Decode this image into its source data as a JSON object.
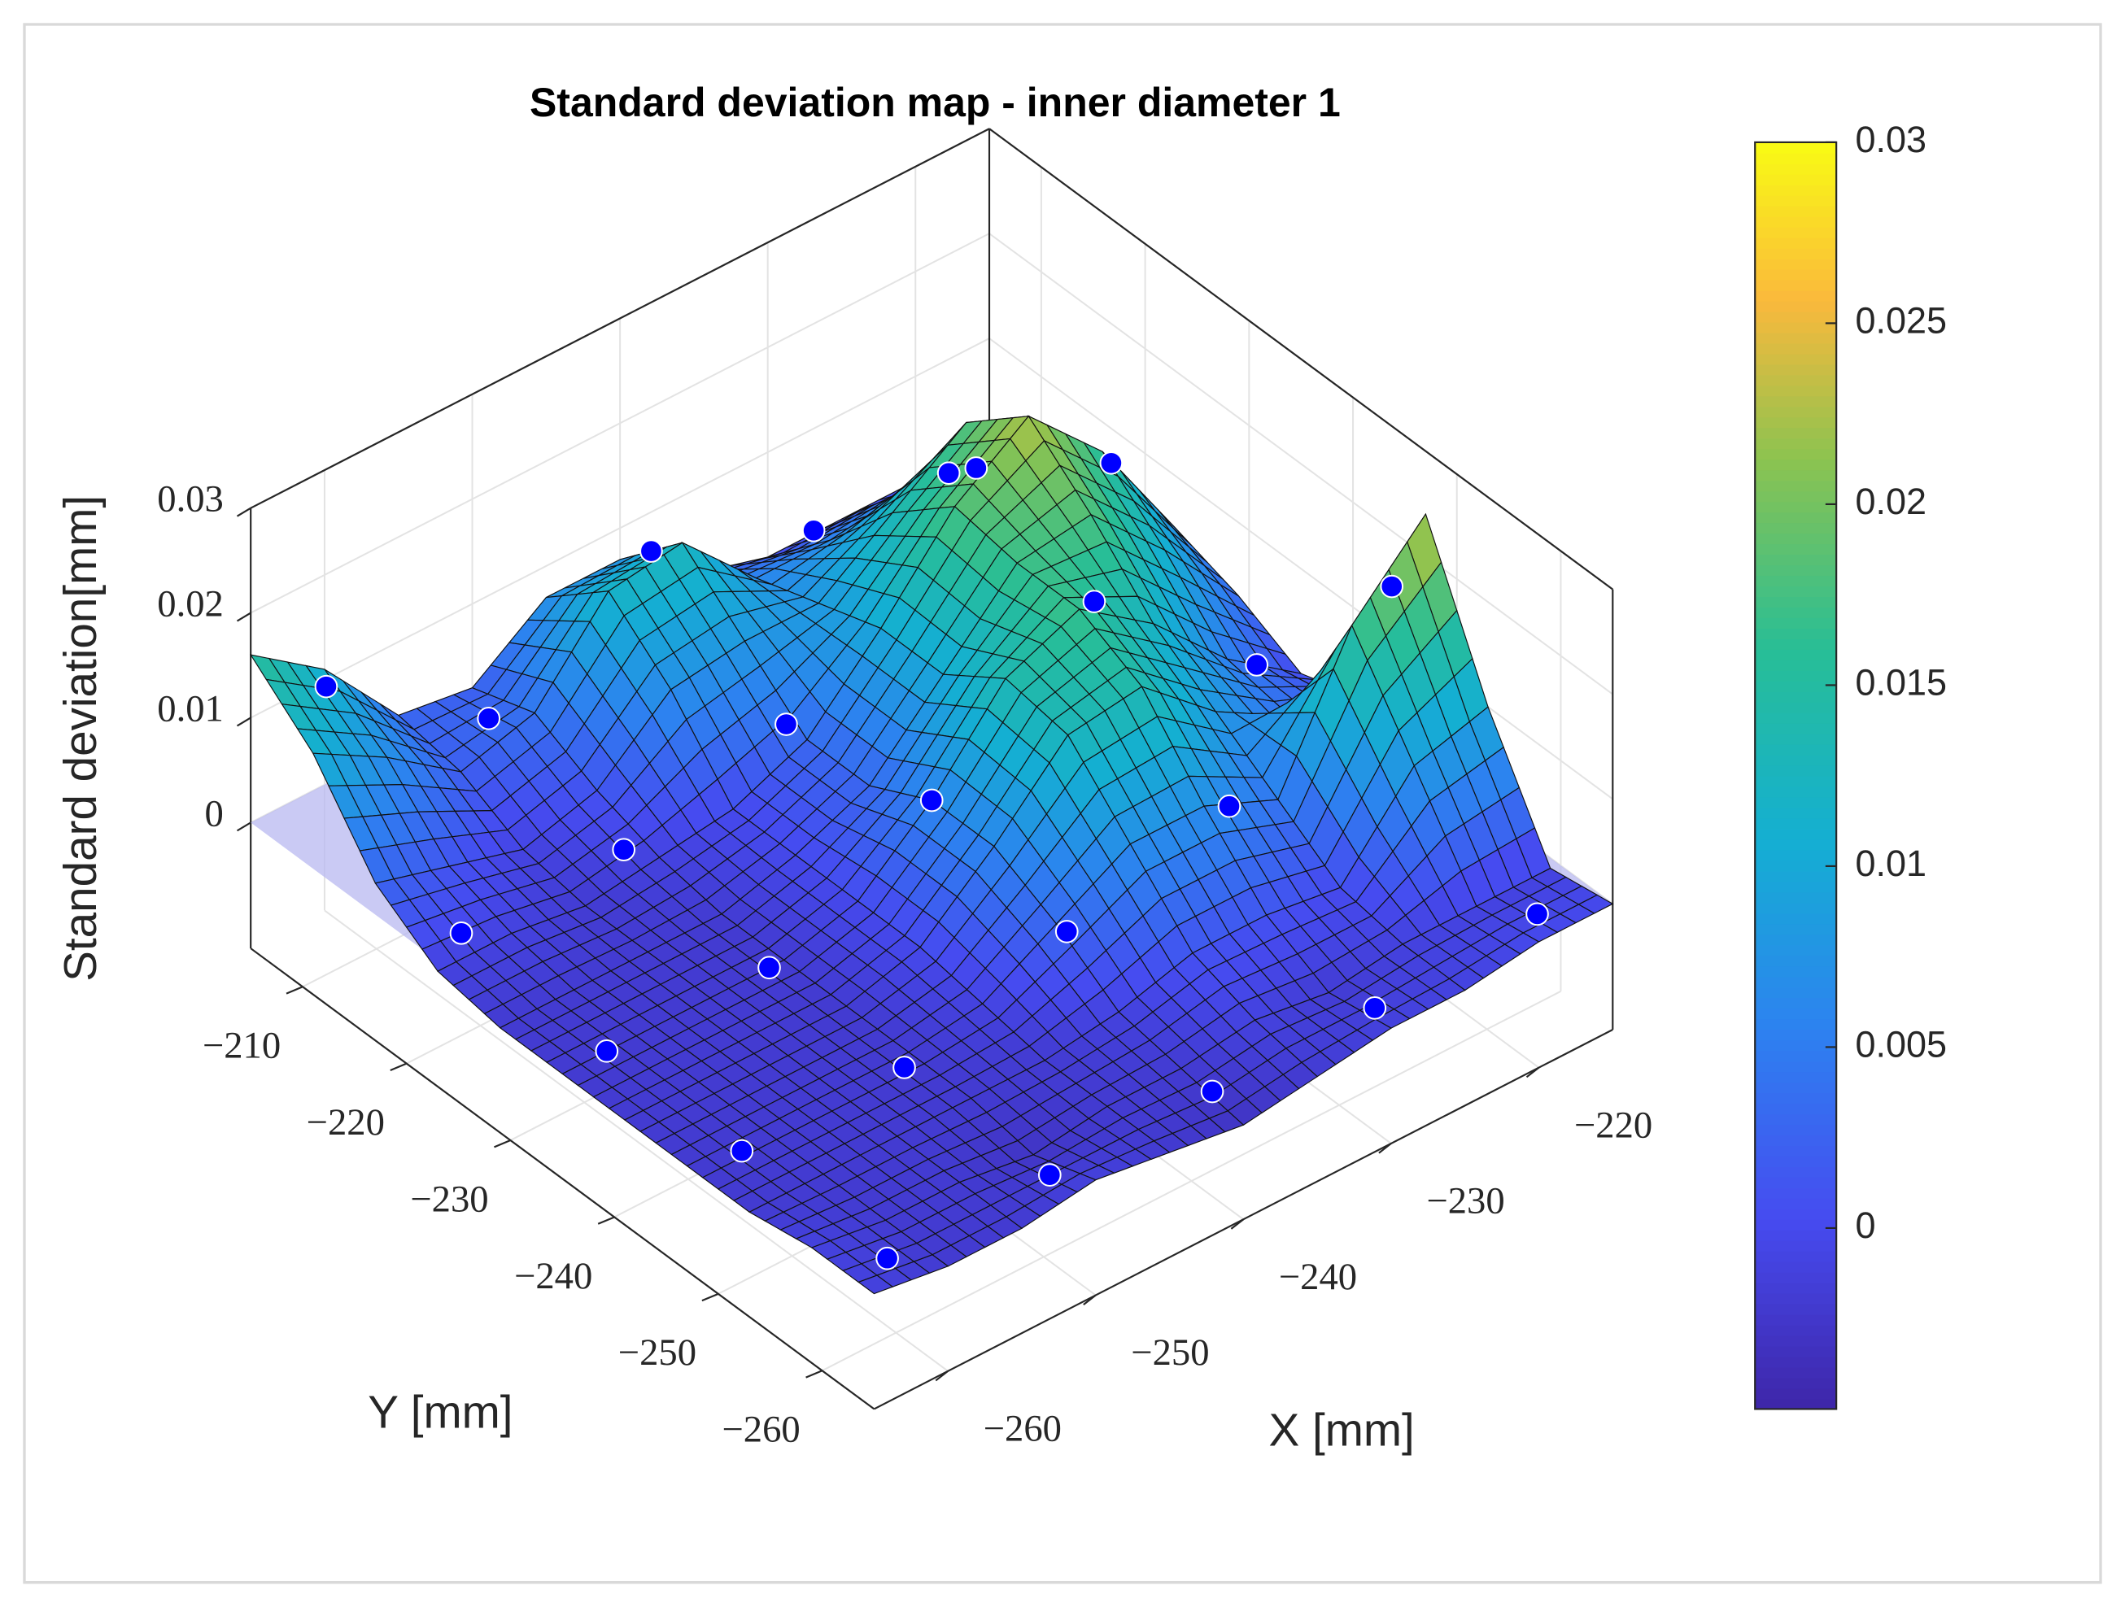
{
  "chart_data": {
    "type": "surface",
    "title": "Standard deviation map - inner diameter 1",
    "xlabel": "X [mm]",
    "ylabel": "Y [mm]",
    "zlabel": "Standard deviation[mm]",
    "x": [
      -265,
      -260,
      -255,
      -250,
      -245,
      -240,
      -235,
      -230,
      -225,
      -220,
      -215
    ],
    "y": [
      -265,
      -259,
      -253,
      -247,
      -241,
      -235,
      -229,
      -223,
      -217,
      -211,
      -205
    ],
    "z": [
      [
        -0.001,
        -0.002,
        -0.002,
        -0.001,
        -0.002,
        -0.003,
        -0.002,
        -0.001,
        -0.001,
        0.0,
        0.0
      ],
      [
        -0.001,
        -0.002,
        -0.002,
        -0.003,
        -0.002,
        -0.002,
        -0.001,
        -0.002,
        -0.001,
        -0.001,
        -0.001
      ],
      [
        -0.002,
        -0.002,
        -0.002,
        -0.002,
        -0.002,
        -0.001,
        0.001,
        0.001,
        0.0,
        0.008,
        0.01
      ],
      [
        -0.002,
        -0.002,
        -0.002,
        -0.002,
        -0.001,
        0.003,
        0.007,
        0.007,
        0.004,
        0.017,
        0.024
      ],
      [
        -0.002,
        -0.002,
        -0.002,
        -0.002,
        0.0,
        0.006,
        0.013,
        0.014,
        0.008,
        0.004,
        0.002
      ],
      [
        -0.002,
        -0.002,
        -0.002,
        -0.002,
        0.0,
        0.006,
        0.014,
        0.017,
        0.012,
        0.005,
        0.0
      ],
      [
        -0.002,
        -0.002,
        -0.002,
        -0.002,
        0.0,
        0.003,
        0.01,
        0.017,
        0.018,
        0.011,
        0.003
      ],
      [
        -0.001,
        -0.001,
        -0.002,
        -0.001,
        0.0,
        0.003,
        0.01,
        0.018,
        0.023,
        0.016,
        0.005
      ],
      [
        0.003,
        0.001,
        -0.001,
        0.001,
        0.007,
        0.008,
        0.008,
        0.013,
        0.018,
        0.013,
        0.004
      ],
      [
        0.011,
        0.007,
        0.002,
        0.004,
        0.012,
        0.013,
        0.006,
        0.006,
        0.007,
        0.005,
        0.001
      ],
      [
        0.016,
        0.011,
        0.003,
        0.002,
        0.007,
        0.007,
        0.002,
        0.0,
        0.0,
        0.0,
        -0.001
      ]
    ],
    "scatter": {
      "color": "#0000ff",
      "x": [
        -262,
        -251,
        -240,
        -229,
        -218,
        -262,
        -251,
        -240,
        -229,
        -218,
        -262,
        -251,
        -240,
        -229,
        -218,
        -262,
        -251,
        -240,
        -229,
        -218,
        -262,
        -251,
        -240,
        -229,
        -218
      ],
      "y": [
        -262,
        -262,
        -262,
        -262,
        -262,
        -248,
        -248,
        -248,
        -248,
        -248,
        -235,
        -235,
        -235,
        -235,
        -235,
        -221,
        -221,
        -221,
        -221,
        -221,
        -208,
        -208,
        -208,
        -208,
        -208
      ],
      "z": [
        -0.002,
        -0.002,
        -0.002,
        -0.002,
        -0.001,
        -0.002,
        -0.002,
        0.003,
        0.007,
        0.02,
        -0.002,
        -0.002,
        0.006,
        0.017,
        0.003,
        -0.001,
        -0.001,
        0.003,
        0.019,
        0.012,
        0.013,
        0.002,
        0.01,
        0.004,
        0.002
      ]
    },
    "xlim": [
      -265,
      -215
    ],
    "ylim": [
      -265,
      -205
    ],
    "zlim": [
      -0.012,
      0.03
    ],
    "xticks": [
      {
        "value": -260,
        "label": "−260"
      },
      {
        "value": -250,
        "label": "−250"
      },
      {
        "value": -240,
        "label": "−240"
      },
      {
        "value": -230,
        "label": "−230"
      },
      {
        "value": -220,
        "label": "−220"
      }
    ],
    "yticks": [
      {
        "value": -260,
        "label": "−260"
      },
      {
        "value": -250,
        "label": "−250"
      },
      {
        "value": -240,
        "label": "−240"
      },
      {
        "value": -230,
        "label": "−230"
      },
      {
        "value": -220,
        "label": "−220"
      },
      {
        "value": -210,
        "label": "−210"
      }
    ],
    "zticks": [
      0,
      0.01,
      0.02,
      0.03
    ],
    "clim": [
      -0.005,
      0.03
    ],
    "cticks": [
      0,
      0.005,
      0.01,
      0.015,
      0.02,
      0.025,
      0.03
    ],
    "colormap": "parula",
    "grid": true
  }
}
